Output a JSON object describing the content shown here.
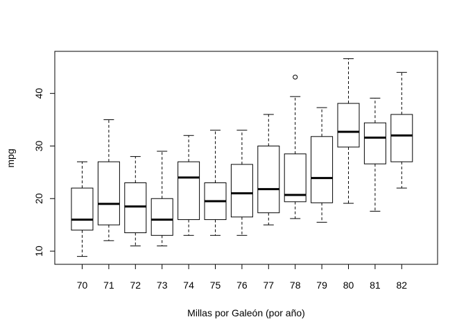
{
  "chart_data": {
    "type": "boxplot",
    "title": "",
    "xlabel": "Millas por Galeón (por año)",
    "ylabel": "mpg",
    "ylim": [
      7.5,
      48
    ],
    "yticks": [
      10,
      20,
      30,
      40
    ],
    "categories": [
      "70",
      "71",
      "72",
      "73",
      "74",
      "75",
      "76",
      "77",
      "78",
      "79",
      "80",
      "81",
      "82"
    ],
    "boxes": [
      {
        "category": "70",
        "whisker_low": 9,
        "q1": 14,
        "median": 16,
        "q3": 22,
        "whisker_high": 27,
        "outliers": []
      },
      {
        "category": "71",
        "whisker_low": 12,
        "q1": 15,
        "median": 19,
        "q3": 27,
        "whisker_high": 35,
        "outliers": []
      },
      {
        "category": "72",
        "whisker_low": 11,
        "q1": 13.5,
        "median": 18.5,
        "q3": 23,
        "whisker_high": 28,
        "outliers": []
      },
      {
        "category": "73",
        "whisker_low": 11,
        "q1": 13,
        "median": 16,
        "q3": 20,
        "whisker_high": 29,
        "outliers": []
      },
      {
        "category": "74",
        "whisker_low": 13,
        "q1": 16,
        "median": 24,
        "q3": 27,
        "whisker_high": 32,
        "outliers": []
      },
      {
        "category": "75",
        "whisker_low": 13,
        "q1": 16,
        "median": 19.5,
        "q3": 23,
        "whisker_high": 33,
        "outliers": []
      },
      {
        "category": "76",
        "whisker_low": 13,
        "q1": 16.5,
        "median": 21,
        "q3": 26.5,
        "whisker_high": 33,
        "outliers": []
      },
      {
        "category": "77",
        "whisker_low": 15,
        "q1": 17.3,
        "median": 21.8,
        "q3": 30,
        "whisker_high": 36,
        "outliers": []
      },
      {
        "category": "78",
        "whisker_low": 16.2,
        "q1": 19.4,
        "median": 20.7,
        "q3": 28.5,
        "whisker_high": 39.4,
        "outliers": [
          43.1
        ]
      },
      {
        "category": "79",
        "whisker_low": 15.5,
        "q1": 19.2,
        "median": 23.9,
        "q3": 31.8,
        "whisker_high": 37.3,
        "outliers": []
      },
      {
        "category": "80",
        "whisker_low": 19.1,
        "q1": 29.8,
        "median": 32.7,
        "q3": 38.1,
        "whisker_high": 46.6,
        "outliers": []
      },
      {
        "category": "81",
        "whisker_low": 17.6,
        "q1": 26.6,
        "median": 31.6,
        "q3": 34.4,
        "whisker_high": 39.1,
        "outliers": []
      },
      {
        "category": "82",
        "whisker_low": 22,
        "q1": 27,
        "median": 32,
        "q3": 36,
        "whisker_high": 44,
        "outliers": []
      }
    ],
    "grid": false,
    "legend": "none",
    "colors": {
      "box_fill": "#ffffff",
      "stroke": "#000000"
    }
  }
}
